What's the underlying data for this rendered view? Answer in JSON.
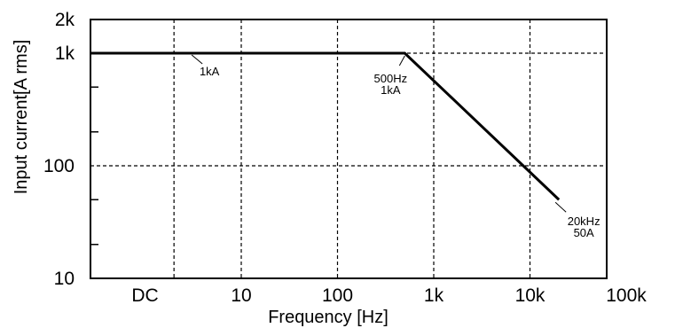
{
  "chart_data": {
    "type": "line",
    "xlabel": "Frequency [Hz]",
    "ylabel": "Input current[A rms]",
    "x_scale": "log",
    "y_scale": "log",
    "xlim": [
      "DC",
      100000
    ],
    "ylim": [
      10,
      2000
    ],
    "grid": true,
    "x_ticks": [
      {
        "label": "DC",
        "value": 0
      },
      {
        "label": "10",
        "value": 10
      },
      {
        "label": "100",
        "value": 100
      },
      {
        "label": "1k",
        "value": 1000
      },
      {
        "label": "10k",
        "value": 10000
      },
      {
        "label": "100k",
        "value": 100000
      }
    ],
    "y_ticks": [
      {
        "label": "10",
        "value": 10
      },
      {
        "label": "100",
        "value": 100
      },
      {
        "label": "1k",
        "value": 1000
      },
      {
        "label": "2k",
        "value": 2000
      }
    ],
    "series": [
      {
        "x": [
          "DC",
          500,
          20000
        ],
        "y": [
          1000,
          1000,
          50
        ]
      }
    ],
    "annotations": [
      {
        "text": "1kA",
        "x": 2,
        "y": 1000
      },
      {
        "lines": [
          "500Hz",
          "1kA"
        ],
        "x": 500,
        "y": 1000
      },
      {
        "lines": [
          "20kHz",
          "50A"
        ],
        "x": 20000,
        "y": 50
      }
    ]
  }
}
